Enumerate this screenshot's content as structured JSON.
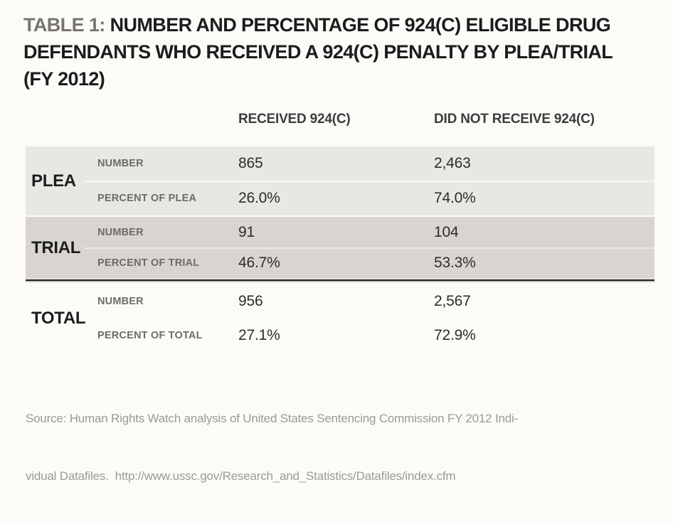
{
  "title": {
    "prefix": "TABLE 1:",
    "line1_rest": " NUMBER AND PERCENTAGE OF 924(C) ELIGIBLE DRUG",
    "line2": "DEFENDANTS WHO RECEIVED A 924(C) PENALTY BY PLEA/TRIAL",
    "line3": "(FY 2012)"
  },
  "column_headers": {
    "received": "RECEIVED 924(C)",
    "not_received": "DID NOT RECEIVE 924(C)"
  },
  "table": {
    "sections": [
      {
        "group": "PLEA",
        "rows": [
          {
            "label": "NUMBER",
            "received": "865",
            "not_received": "2,463"
          },
          {
            "label": "PERCENT OF PLEA",
            "received": "26.0%",
            "not_received": "74.0%"
          }
        ]
      },
      {
        "group": "TRIAL",
        "rows": [
          {
            "label": "NUMBER",
            "received": "91",
            "not_received": "104"
          },
          {
            "label": "PERCENT OF TRIAL",
            "received": "46.7%",
            "not_received": "53.3%"
          }
        ]
      },
      {
        "group": "TOTAL",
        "rows": [
          {
            "label": "NUMBER",
            "received": "956",
            "not_received": "2,567"
          },
          {
            "label": "PERCENT OF TOTAL",
            "received": "27.1%",
            "not_received": "72.9%"
          }
        ]
      }
    ]
  },
  "source": {
    "line1": "Source: Human Rights Watch analysis of United States Sentencing Commission FY 2012 Indi-",
    "line2": "vidual Datafiles.  http://www.ussc.gov/Research_and_Statistics/Datafiles/index.cfm"
  },
  "colors": {
    "page_background": "#fcfbf8",
    "plea_section_background": "#e9e7e4",
    "trial_section_background": "#d8d5d1",
    "total_rule_black": "#1a1a1a",
    "title_prefix_gray": "#787570",
    "title_text": "#1c1c1c",
    "column_header_text": "#3c3c3c",
    "sublabel_text": "#6e6c68",
    "value_text": "#2e2d2b",
    "source_text": "#9c9a96"
  }
}
